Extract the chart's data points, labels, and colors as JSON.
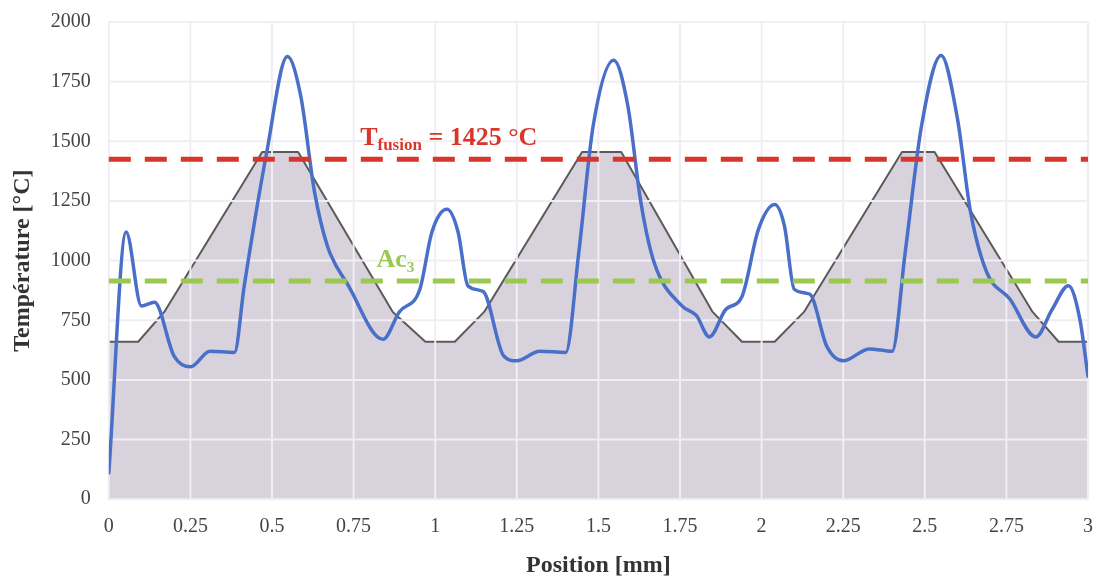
{
  "chart_data": {
    "type": "line",
    "xlabel": "Position [mm]",
    "ylabel": "Température [°C]",
    "xlim": [
      0,
      3
    ],
    "xticks": [
      0,
      0.25,
      0.5,
      0.75,
      1,
      1.25,
      1.5,
      1.75,
      2,
      2.25,
      2.5,
      2.75,
      3
    ],
    "ylim": [
      0,
      2000
    ],
    "yticks": [
      0,
      250,
      500,
      750,
      1000,
      1250,
      1500,
      1750,
      2000
    ],
    "grid": true,
    "legend": false,
    "marker": "none",
    "series": [
      {
        "type": "area",
        "color": "#d8d2dc",
        "x": [
          0,
          0.09,
          0.17,
          0.47,
          0.58,
          0.87,
          0.97,
          1.06,
          1.15,
          1.45,
          1.57,
          1.85,
          1.94,
          2.04,
          2.13,
          2.43,
          2.53,
          2.83,
          2.91,
          3
        ],
        "values": [
          660,
          660,
          785,
          1455,
          1455,
          785,
          660,
          660,
          785,
          1455,
          1455,
          785,
          660,
          660,
          785,
          1455,
          1455,
          785,
          660,
          660
        ]
      },
      {
        "type": "line",
        "color": "#4a6fc9",
        "x": [
          0,
          0.053,
          0.1,
          0.14,
          0.2,
          0.25,
          0.31,
          0.385,
          0.415,
          0.484,
          0.547,
          0.588,
          0.63,
          0.67,
          0.734,
          0.84,
          0.89,
          0.953,
          0.99,
          1.036,
          1.07,
          1.1,
          1.147,
          1.21,
          1.25,
          1.32,
          1.4,
          1.44,
          1.484,
          1.547,
          1.59,
          1.63,
          1.67,
          1.756,
          1.8,
          1.84,
          1.89,
          1.94,
          1.99,
          2.04,
          2.07,
          2.1,
          2.147,
          2.2,
          2.25,
          2.33,
          2.4,
          2.44,
          2.49,
          2.55,
          2.6,
          2.64,
          2.69,
          2.76,
          2.84,
          2.89,
          2.94,
          2.975,
          3
        ],
        "values": [
          110,
          1120,
          810,
          825,
          600,
          555,
          620,
          615,
          895,
          1455,
          1855,
          1690,
          1290,
          1060,
          895,
          670,
          785,
          880,
          1120,
          1215,
          1120,
          895,
          870,
          600,
          580,
          620,
          615,
          1035,
          1565,
          1840,
          1650,
          1245,
          995,
          810,
          770,
          680,
          795,
          850,
          1130,
          1235,
          1145,
          880,
          860,
          640,
          580,
          630,
          620,
          1035,
          1565,
          1860,
          1595,
          1205,
          950,
          840,
          680,
          795,
          895,
          755,
          515
        ]
      }
    ],
    "ref_lines": [
      {
        "axis": "y",
        "value": 1425,
        "label": "T$_{fusion}$ = 1425 °C",
        "color": "#d9362b",
        "line_style": "dashed"
      },
      {
        "axis": "y",
        "value": 915,
        "label": "Ac₃",
        "color": "#9bc84f",
        "line_style": "dashed"
      }
    ]
  }
}
